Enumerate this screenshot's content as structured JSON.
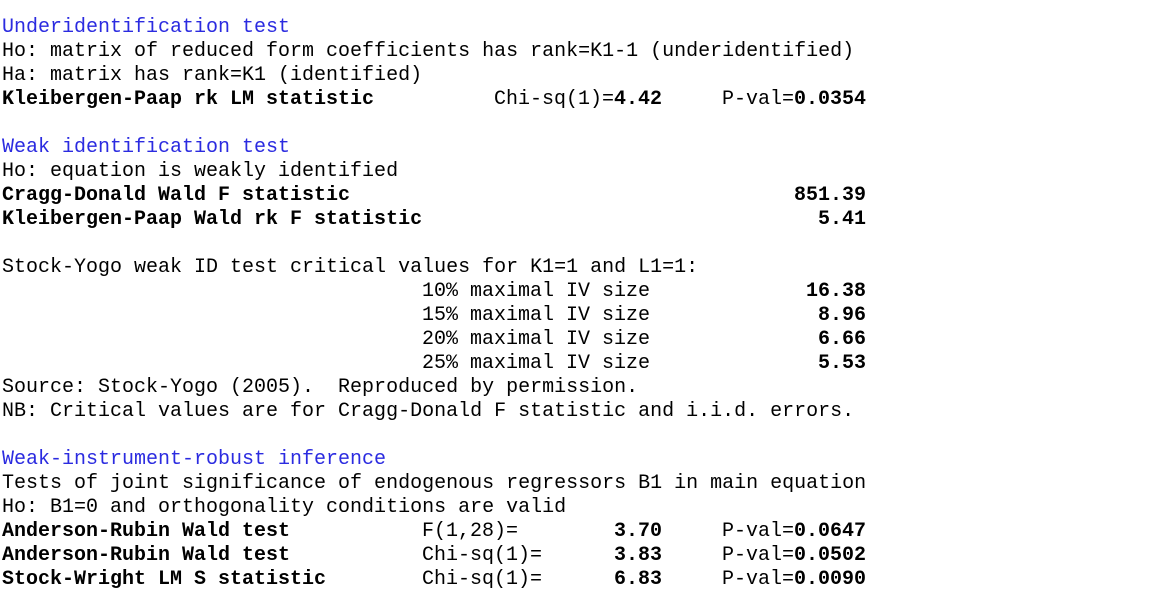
{
  "underidentification": {
    "title": "Underidentification test",
    "ho": "Ho: matrix of reduced form coefficients has rank=K1-1 (underidentified)",
    "ha": "Ha: matrix has rank=K1 (identified)",
    "statistic": {
      "label": "Kleibergen-Paap rk LM statistic",
      "test": "Chi-sq(1)=",
      "value": "4.42",
      "pval_label": "P-val=",
      "pval": "0.0354"
    }
  },
  "weak_identification": {
    "title": "Weak identification test",
    "ho": "Ho: equation is weakly identified",
    "statistics": [
      {
        "label": "Cragg-Donald Wald F statistic",
        "value": "851.39"
      },
      {
        "label": "Kleibergen-Paap Wald rk F statistic",
        "value": "5.41"
      }
    ],
    "stock_yogo": {
      "heading": "Stock-Yogo weak ID test critical values for K1=1 and L1=1:",
      "rows": [
        {
          "label": "10% maximal IV size",
          "value": "16.38"
        },
        {
          "label": "15% maximal IV size",
          "value": "8.96"
        },
        {
          "label": "20% maximal IV size",
          "value": "6.66"
        },
        {
          "label": "25% maximal IV size",
          "value": "5.53"
        }
      ],
      "source": "Source: Stock-Yogo (2005).  Reproduced by permission.",
      "note": "NB: Critical values are for Cragg-Donald F statistic and i.i.d. errors."
    }
  },
  "robust_inference": {
    "title": "Weak-instrument-robust inference",
    "description": "Tests of joint significance of endogenous regressors B1 in main equation",
    "ho": "Ho: B1=0 and orthogonality conditions are valid",
    "tests": [
      {
        "label": "Anderson-Rubin Wald test",
        "test": "F(1,28)=",
        "value": "3.70",
        "pval_label": "P-val=",
        "pval": "0.0647"
      },
      {
        "label": "Anderson-Rubin Wald test",
        "test": "Chi-sq(1)=",
        "value": "3.83",
        "pval_label": "P-val=",
        "pval": "0.0502"
      },
      {
        "label": "Stock-Wright LM S statistic",
        "test": "Chi-sq(1)=",
        "value": "6.83",
        "pval_label": "P-val=",
        "pval": "0.0090"
      }
    ]
  }
}
